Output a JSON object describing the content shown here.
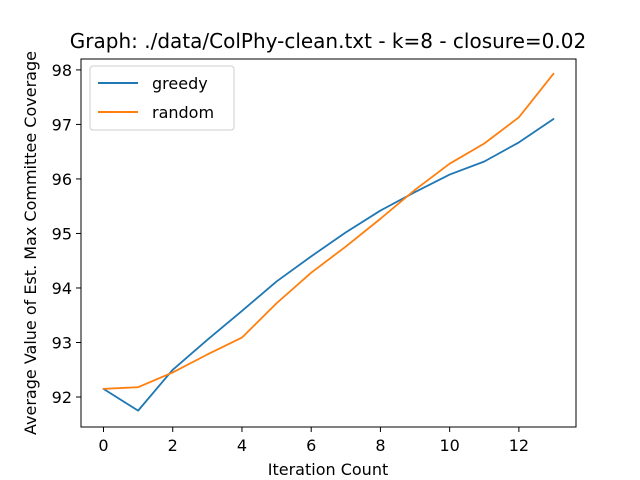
{
  "chart_data": {
    "type": "line",
    "title": "Graph: ./data/ColPhy-clean.txt - k=8 - closure=0.02",
    "xlabel": "Iteration Count",
    "ylabel": "Average Value of Est. Max Committee Coverage",
    "xlim": [
      -0.65,
      13.65
    ],
    "ylim": [
      91.45,
      98.2
    ],
    "x_ticks": [
      0,
      2,
      4,
      6,
      8,
      10,
      12
    ],
    "y_ticks": [
      92,
      93,
      94,
      95,
      96,
      97,
      98
    ],
    "grid": false,
    "legend_position": "top-left",
    "x": [
      0,
      1,
      2,
      3,
      4,
      5,
      6,
      7,
      8,
      9,
      10,
      11,
      12,
      13
    ],
    "series": [
      {
        "name": "greedy",
        "color": "#1f77b4",
        "values": [
          92.15,
          91.75,
          92.5,
          93.05,
          93.58,
          94.12,
          94.58,
          95.02,
          95.42,
          95.76,
          96.08,
          96.32,
          96.67,
          97.1
        ]
      },
      {
        "name": "random",
        "color": "#ff7f0e",
        "values": [
          92.15,
          92.18,
          92.45,
          92.78,
          93.09,
          93.72,
          94.28,
          94.76,
          95.27,
          95.8,
          96.28,
          96.65,
          97.13,
          97.93
        ]
      }
    ]
  }
}
